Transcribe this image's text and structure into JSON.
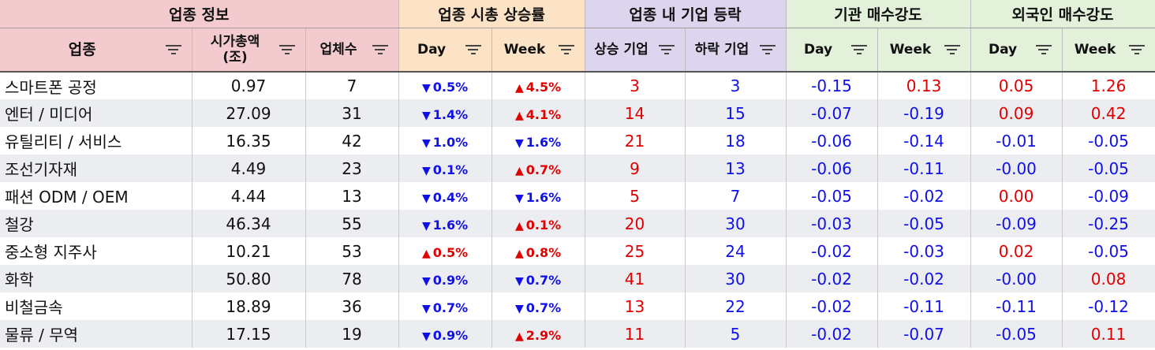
{
  "groups": [
    "업종 정보",
    "업종 시총 상승률",
    "업종 내 기업 등락",
    "기관 매수강도",
    "외국인 매수강도"
  ],
  "columns": {
    "sector": "업종",
    "mcap_line1": "시가총액",
    "mcap_line2": "(조)",
    "count": "업체수",
    "cap_day": "Day",
    "cap_week": "Week",
    "rise": "상승 기업",
    "fall": "하락 기업",
    "inst_day": "Day",
    "inst_week": "Week",
    "for_day": "Day",
    "for_week": "Week"
  },
  "colors": {
    "up": "#e00000",
    "down": "#1010e8"
  },
  "rows": [
    {
      "sector": "스마트폰 공정",
      "mcap": "0.97",
      "count": "7",
      "day": "0.5%",
      "day_dir": "down",
      "week": "4.5%",
      "week_dir": "up",
      "rise": "3",
      "fall": "3",
      "inst_day": "-0.15",
      "inst_week": "0.13",
      "for_day": "0.05",
      "for_week": "1.26"
    },
    {
      "sector": "엔터 / 미디어",
      "mcap": "27.09",
      "count": "31",
      "day": "1.4%",
      "day_dir": "down",
      "week": "4.1%",
      "week_dir": "up",
      "rise": "14",
      "fall": "15",
      "inst_day": "-0.07",
      "inst_week": "-0.19",
      "for_day": "0.09",
      "for_week": "0.42"
    },
    {
      "sector": "유틸리티 / 서비스",
      "mcap": "16.35",
      "count": "42",
      "day": "1.0%",
      "day_dir": "down",
      "week": "1.6%",
      "week_dir": "down",
      "rise": "21",
      "fall": "18",
      "inst_day": "-0.06",
      "inst_week": "-0.14",
      "for_day": "-0.01",
      "for_week": "-0.05"
    },
    {
      "sector": "조선기자재",
      "mcap": "4.49",
      "count": "23",
      "day": "0.1%",
      "day_dir": "down",
      "week": "0.7%",
      "week_dir": "up",
      "rise": "9",
      "fall": "13",
      "inst_day": "-0.06",
      "inst_week": "-0.11",
      "for_day": "-0.00",
      "for_week": "-0.05"
    },
    {
      "sector": "패션 ODM / OEM",
      "mcap": "4.44",
      "count": "13",
      "day": "0.4%",
      "day_dir": "down",
      "week": "1.6%",
      "week_dir": "down",
      "rise": "5",
      "fall": "7",
      "inst_day": "-0.05",
      "inst_week": "-0.02",
      "for_day": "0.00",
      "for_week": "-0.09"
    },
    {
      "sector": "철강",
      "mcap": "46.34",
      "count": "55",
      "day": "1.6%",
      "day_dir": "down",
      "week": "0.1%",
      "week_dir": "up",
      "rise": "20",
      "fall": "30",
      "inst_day": "-0.03",
      "inst_week": "-0.05",
      "for_day": "-0.09",
      "for_week": "-0.25"
    },
    {
      "sector": "중소형 지주사",
      "mcap": "10.21",
      "count": "53",
      "day": "0.5%",
      "day_dir": "up",
      "week": "0.8%",
      "week_dir": "up",
      "rise": "25",
      "fall": "24",
      "inst_day": "-0.02",
      "inst_week": "-0.03",
      "for_day": "0.02",
      "for_week": "-0.05"
    },
    {
      "sector": "화학",
      "mcap": "50.80",
      "count": "78",
      "day": "0.9%",
      "day_dir": "down",
      "week": "0.7%",
      "week_dir": "down",
      "rise": "41",
      "fall": "30",
      "inst_day": "-0.02",
      "inst_week": "-0.02",
      "for_day": "-0.00",
      "for_week": "0.08"
    },
    {
      "sector": "비철금속",
      "mcap": "18.89",
      "count": "36",
      "day": "0.7%",
      "day_dir": "down",
      "week": "0.7%",
      "week_dir": "down",
      "rise": "13",
      "fall": "22",
      "inst_day": "-0.02",
      "inst_week": "-0.11",
      "for_day": "-0.11",
      "for_week": "-0.12"
    },
    {
      "sector": "물류 / 무역",
      "mcap": "17.15",
      "count": "19",
      "day": "0.9%",
      "day_dir": "down",
      "week": "2.9%",
      "week_dir": "up",
      "rise": "11",
      "fall": "5",
      "inst_day": "-0.02",
      "inst_week": "-0.07",
      "for_day": "-0.05",
      "for_week": "0.11"
    }
  ]
}
